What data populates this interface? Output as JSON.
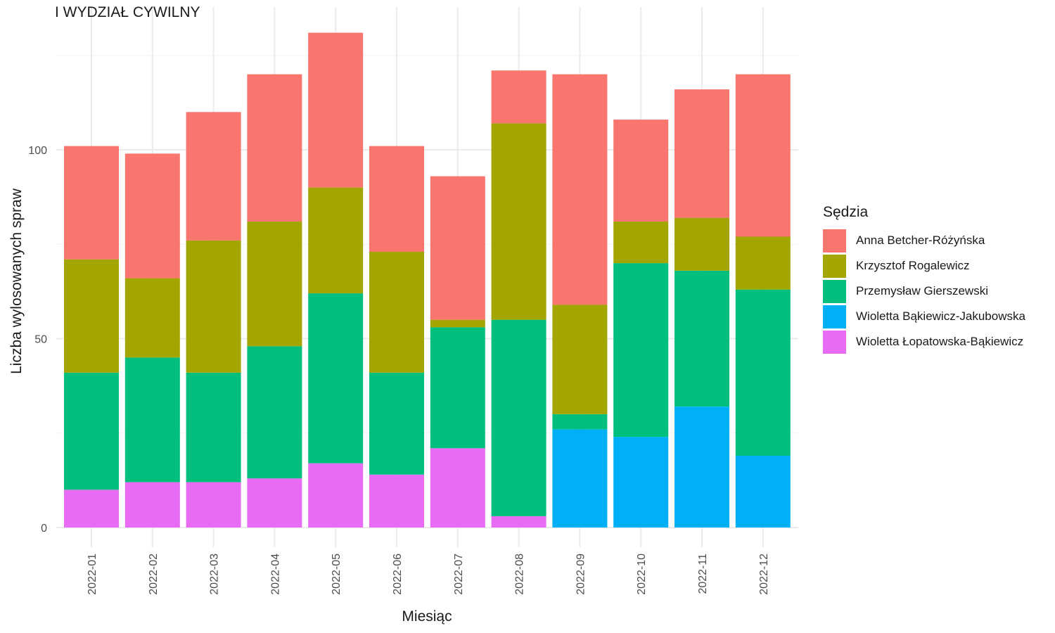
{
  "chart_data": {
    "type": "bar",
    "stacked": true,
    "title": "I WYDZIAŁ CYWILNY",
    "xlabel": "Miesiąc",
    "ylabel": "Liczba wylosowanych spraw",
    "legend_title": "Sędzia",
    "legend_position": "right",
    "grid": true,
    "ylim": [
      0,
      131
    ],
    "yticks": [
      0,
      50,
      100
    ],
    "categories": [
      "2022-01",
      "2022-02",
      "2022-03",
      "2022-04",
      "2022-05",
      "2022-06",
      "2022-07",
      "2022-08",
      "2022-09",
      "2022-10",
      "2022-11",
      "2022-12"
    ],
    "series": [
      {
        "name": "Anna Betcher-Różyńska",
        "color": "#F8766D",
        "values": [
          30,
          33,
          34,
          39,
          41,
          28,
          38,
          14,
          61,
          27,
          34,
          43
        ]
      },
      {
        "name": "Krzysztof Rogalewicz",
        "color": "#A3A500",
        "values": [
          30,
          21,
          35,
          33,
          28,
          32,
          2,
          52,
          29,
          11,
          14,
          14
        ]
      },
      {
        "name": "Przemysław Gierszewski",
        "color": "#00BF7D",
        "values": [
          31,
          33,
          29,
          35,
          45,
          27,
          32,
          52,
          4,
          46,
          36,
          44
        ]
      },
      {
        "name": "Wioletta Bąkiewicz-Jakubowska",
        "color": "#00B0F6",
        "values": [
          0,
          0,
          0,
          0,
          0,
          0,
          0,
          0,
          26,
          24,
          32,
          19
        ]
      },
      {
        "name": "Wioletta Łopatowska-Bąkiewicz",
        "color": "#E76BF3",
        "values": [
          10,
          12,
          12,
          13,
          17,
          14,
          21,
          3,
          0,
          0,
          0,
          0
        ]
      }
    ]
  }
}
